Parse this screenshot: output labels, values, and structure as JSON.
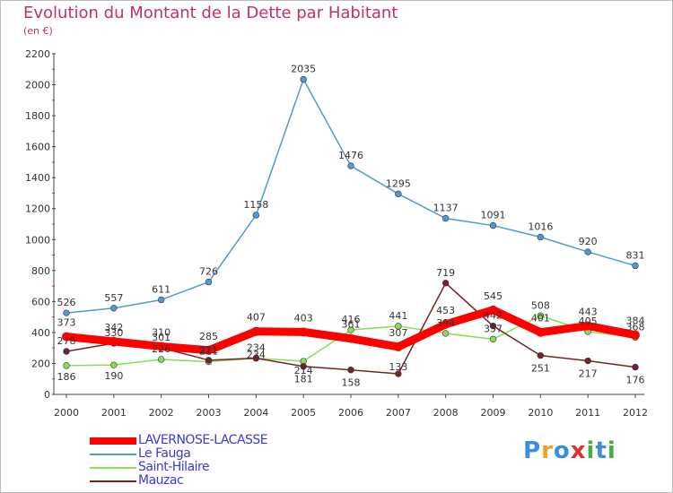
{
  "header": {
    "title": "Evolution du Montant de la Dette par Habitant",
    "subtitle": "(en €)"
  },
  "chart_data": {
    "type": "line",
    "title": "Evolution du Montant de la Dette par Habitant",
    "ylabel": "(en €)",
    "xlabel": "",
    "ylim": [
      0,
      2200
    ],
    "yticks": [
      0,
      200,
      400,
      600,
      800,
      1000,
      1200,
      1400,
      1600,
      1800,
      2000,
      2200
    ],
    "x": [
      "2000",
      "2001",
      "2002",
      "2003",
      "2004",
      "2005",
      "2006",
      "2007",
      "2008",
      "2009",
      "2010",
      "2011",
      "2012"
    ],
    "grid": false,
    "legend_position": "bottom-left",
    "series": [
      {
        "name": "LAVERNOSE-LACASSE",
        "color": "#ff0000",
        "values": [
          373,
          342,
          310,
          285,
          407,
          403,
          361,
          307,
          453,
          545,
          401,
          443,
          384
        ]
      },
      {
        "name": "Le Fauga",
        "color": "#5599cc",
        "values": [
          526,
          557,
          611,
          726,
          1158,
          2035,
          1476,
          1295,
          1137,
          1091,
          1016,
          920,
          831
        ]
      },
      {
        "name": "Saint-Hilaire",
        "color": "#88dd55",
        "values": [
          186,
          190,
          226,
          211,
          234,
          214,
          416,
          441,
          394,
          357,
          508,
          405,
          368
        ]
      },
      {
        "name": "Mauzac",
        "color": "#772222",
        "values": [
          278,
          330,
          301,
          221,
          234,
          181,
          158,
          133,
          719,
          442,
          251,
          217,
          176
        ]
      }
    ]
  },
  "logo": {
    "letters": [
      "P",
      "r",
      "o",
      "x",
      "i",
      "t",
      "i"
    ],
    "colors": [
      "#3a8fd8",
      "#f0a020",
      "#3a8fd8",
      "#e03030",
      "#40b040",
      "#3a8fd8",
      "#40b040"
    ]
  }
}
